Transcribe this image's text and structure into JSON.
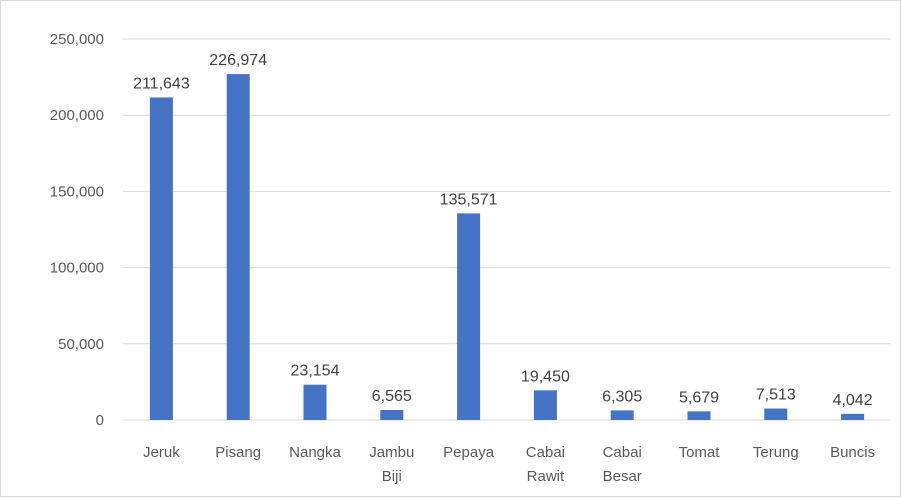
{
  "chart_data": {
    "type": "bar",
    "title": "",
    "xlabel": "",
    "ylabel": "",
    "categories": [
      [
        "Jeruk"
      ],
      [
        "Pisang"
      ],
      [
        "Nangka"
      ],
      [
        "Jambu",
        "Biji"
      ],
      [
        "Pepaya"
      ],
      [
        "Cabai",
        "Rawit"
      ],
      [
        "Cabai",
        "Besar"
      ],
      [
        "Tomat"
      ],
      [
        "Terung"
      ],
      [
        "Buncis"
      ]
    ],
    "values": [
      211643,
      226974,
      23154,
      6565,
      135571,
      19450,
      6305,
      5679,
      7513,
      4042
    ],
    "value_labels": [
      "211,643",
      "226,974",
      "23,154",
      "6,565",
      "135,571",
      "19,450",
      "6,305",
      "5,679",
      "7,513",
      "4,042"
    ],
    "ylim": [
      0,
      250000
    ],
    "yticks": [
      0,
      50000,
      100000,
      150000,
      200000,
      250000
    ],
    "ytick_labels": [
      "0",
      "50,000",
      "100,000",
      "150,000",
      "200,000",
      "250,000"
    ],
    "grid": true,
    "legend": "none",
    "bar_color": "#4472c4"
  }
}
